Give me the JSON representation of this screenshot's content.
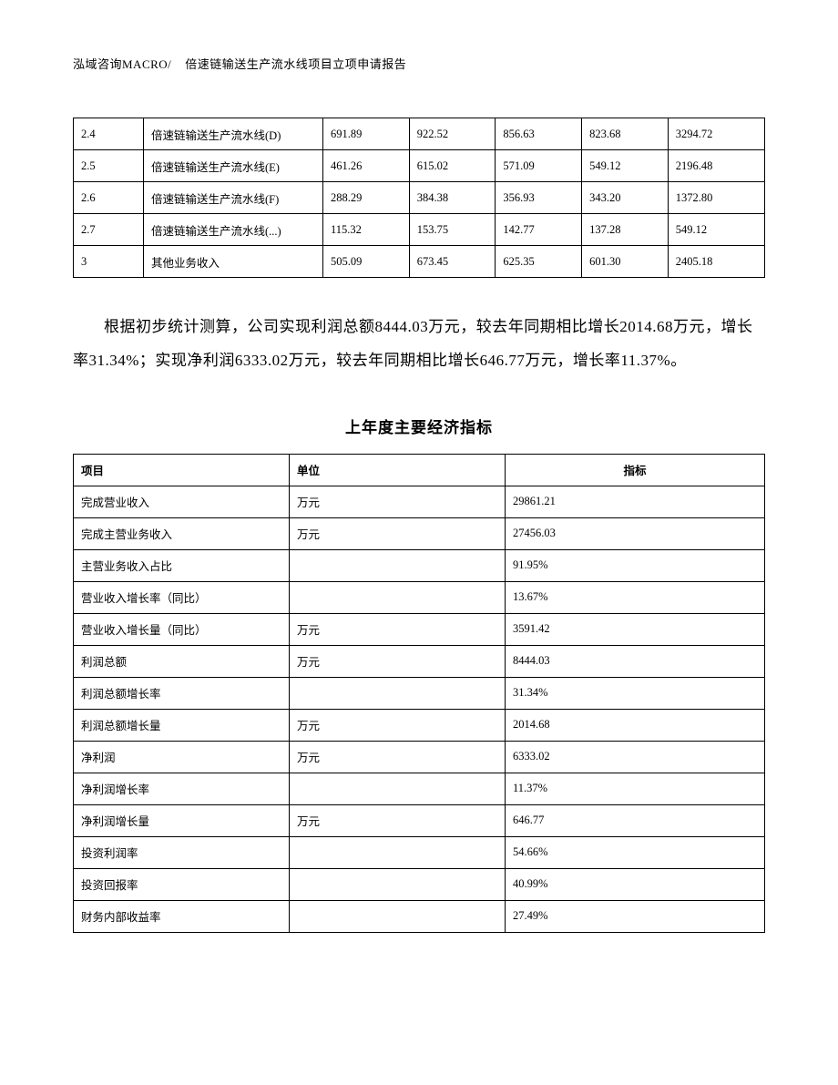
{
  "header": {
    "left": "泓域咨询MACRO/",
    "right": "倍速链输送生产流水线项目立项申请报告"
  },
  "table1": {
    "rows": [
      [
        "2.4",
        "倍速链输送生产流水线(D)",
        "691.89",
        "922.52",
        "856.63",
        "823.68",
        "3294.72"
      ],
      [
        "2.5",
        "倍速链输送生产流水线(E)",
        "461.26",
        "615.02",
        "571.09",
        "549.12",
        "2196.48"
      ],
      [
        "2.6",
        "倍速链输送生产流水线(F)",
        "288.29",
        "384.38",
        "356.93",
        "343.20",
        "1372.80"
      ],
      [
        "2.7",
        "倍速链输送生产流水线(...)",
        "115.32",
        "153.75",
        "142.77",
        "137.28",
        "549.12"
      ],
      [
        "3",
        "其他业务收入",
        "505.09",
        "673.45",
        "625.35",
        "601.30",
        "2405.18"
      ]
    ]
  },
  "paragraph": "根据初步统计测算，公司实现利润总额8444.03万元，较去年同期相比增长2014.68万元，增长率31.34%；实现净利润6333.02万元，较去年同期相比增长646.77万元，增长率11.37%。",
  "subtitle": "上年度主要经济指标",
  "table2": {
    "header": [
      "项目",
      "单位",
      "指标"
    ],
    "rows": [
      [
        "完成营业收入",
        "万元",
        "29861.21"
      ],
      [
        "完成主营业务收入",
        "万元",
        "27456.03"
      ],
      [
        "主营业务收入占比",
        "",
        "91.95%"
      ],
      [
        "营业收入增长率（同比）",
        "",
        "13.67%"
      ],
      [
        "营业收入增长量（同比）",
        "万元",
        "3591.42"
      ],
      [
        "利润总额",
        "万元",
        "8444.03"
      ],
      [
        "利润总额增长率",
        "",
        "31.34%"
      ],
      [
        "利润总额增长量",
        "万元",
        "2014.68"
      ],
      [
        "净利润",
        "万元",
        "6333.02"
      ],
      [
        "净利润增长率",
        "",
        "11.37%"
      ],
      [
        "净利润增长量",
        "万元",
        "646.77"
      ],
      [
        "投资利润率",
        "",
        "54.66%"
      ],
      [
        "投资回报率",
        "",
        "40.99%"
      ],
      [
        "财务内部收益率",
        "",
        "27.49%"
      ]
    ]
  }
}
